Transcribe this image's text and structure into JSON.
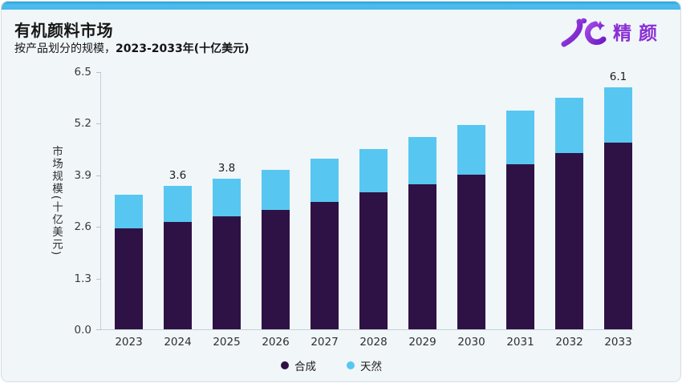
{
  "page": {
    "card_bg": "#f1f6f9",
    "accent_bar_color": "#45b6ea",
    "axis_color": "#c6d0d8"
  },
  "header": {
    "title": "有机颜料市场",
    "subtitle_prefix": "按产品划分的规模，",
    "subtitle_bold": "2023-2033年(十亿美元)",
    "logo_text": "精颜",
    "logo_color": "#8a2fd4"
  },
  "chart_data": {
    "type": "bar",
    "stacked": true,
    "title": "有机颜料市场",
    "subtitle": "按产品划分的规模，2023-2033年(十亿美元)",
    "categories": [
      "2023",
      "2024",
      "2025",
      "2026",
      "2027",
      "2028",
      "2029",
      "2030",
      "2031",
      "2032",
      "2033"
    ],
    "series": [
      {
        "name": "合成",
        "color": "#2e1245",
        "values": [
          2.55,
          2.7,
          2.85,
          3.0,
          3.2,
          3.45,
          3.65,
          3.9,
          4.15,
          4.45,
          4.7
        ]
      },
      {
        "name": "天然",
        "color": "#57c7f1",
        "values": [
          0.85,
          0.9,
          0.95,
          1.0,
          1.1,
          1.1,
          1.2,
          1.25,
          1.35,
          1.4,
          1.4
        ]
      }
    ],
    "totals": [
      3.4,
      3.6,
      3.8,
      4.0,
      4.3,
      4.55,
      4.85,
      5.15,
      5.5,
      5.85,
      6.1
    ],
    "data_labels": [
      {
        "category": "2024",
        "text": "3.6"
      },
      {
        "category": "2025",
        "text": "3.8"
      },
      {
        "category": "2033",
        "text": "6.1"
      }
    ],
    "ylabel": "市场规模(十亿美元)",
    "ytick_labels": [
      "0.0",
      "1.3",
      "2.6",
      "3.9",
      "5.2",
      "6.5"
    ],
    "ylim": [
      0,
      6.5
    ],
    "grid": false,
    "legend_position": "bottom"
  }
}
